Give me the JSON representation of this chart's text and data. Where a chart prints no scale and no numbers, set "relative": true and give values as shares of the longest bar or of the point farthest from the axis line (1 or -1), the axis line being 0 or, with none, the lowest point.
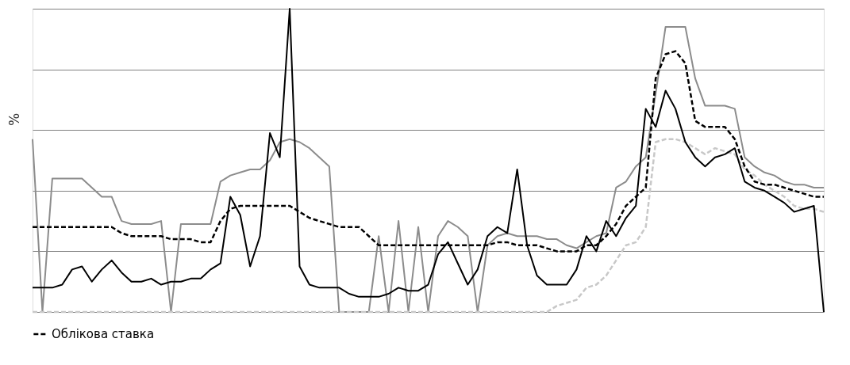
{
  "chart_data": {
    "type": "line",
    "ylabel": "%",
    "relative": true,
    "grid": "y",
    "legend": "bottom",
    "tick_labels": false,
    "categories": [
      null,
      null,
      null,
      null,
      null,
      null,
      null,
      null,
      null,
      null,
      null,
      null,
      null,
      null,
      null,
      null,
      null,
      null,
      null,
      null,
      null,
      null,
      null,
      null,
      null,
      null,
      null,
      null,
      null,
      null,
      null,
      null,
      null,
      null,
      null,
      null,
      null,
      null,
      null,
      null,
      null,
      null,
      null,
      null,
      null,
      null,
      null,
      null,
      null,
      null,
      null,
      null,
      null,
      null,
      null,
      null,
      null,
      null,
      null,
      null,
      null,
      null,
      null,
      null,
      null,
      null,
      null,
      null,
      null,
      null,
      null,
      null,
      null,
      null,
      null,
      null,
      null,
      null,
      null,
      null,
      null
    ],
    "series": [
      {
        "color": "#8c8c8c",
        "line_style": "solid",
        "values": [
          0.57,
          0,
          0.44,
          0.44,
          0.44,
          0.44,
          0.41,
          0.38,
          0.38,
          0.3,
          0.29,
          0.29,
          0.29,
          0.3,
          0,
          0.29,
          0.29,
          0.29,
          0.29,
          0.43,
          0.45,
          0.46,
          0.47,
          0.47,
          0.5,
          0.56,
          0.57,
          0.56,
          0.54,
          0.51,
          0.48,
          0,
          0,
          0,
          0,
          0.25,
          0,
          0.3,
          0,
          0.28,
          0,
          0.25,
          0.3,
          0.28,
          0.25,
          0,
          0.22,
          0.25,
          0.26,
          0.25,
          0.25,
          0.25,
          0.24,
          0.24,
          0.22,
          0.21,
          0.23,
          0.25,
          0.26,
          0.41,
          0.43,
          0.48,
          0.51,
          0.72,
          0.94,
          0.94,
          0.94,
          0.77,
          0.68,
          0.68,
          0.68,
          0.67,
          0.51,
          0.48,
          0.46,
          0.45,
          0.43,
          0.42,
          0.42,
          0.41,
          0.41
        ]
      },
      {
        "color": "#c8c8c8",
        "line_style": "dashed",
        "values": [
          0,
          0,
          0,
          0,
          0,
          0,
          0,
          0,
          0,
          0,
          0,
          0,
          0,
          0,
          0,
          0,
          0,
          0,
          0,
          0,
          0,
          0,
          0,
          0,
          0,
          0,
          0,
          0,
          0,
          0,
          0,
          0,
          0,
          0,
          0,
          0,
          0,
          0,
          0,
          0,
          0,
          0,
          0,
          0,
          0,
          0,
          0,
          0,
          0,
          0,
          0,
          0,
          0,
          0.02,
          0.03,
          0.04,
          0.08,
          0.09,
          0.12,
          0.17,
          0.22,
          0.23,
          0.28,
          0.56,
          0.57,
          0.57,
          0.56,
          0.54,
          0.52,
          0.54,
          0.53,
          0.52,
          0.47,
          0.45,
          0.42,
          0.4,
          0.38,
          0.35,
          0.34,
          0.34,
          0.33
        ]
      },
      {
        "color": "#000000",
        "line_style": "solid",
        "values": [
          0.08,
          0.08,
          0.08,
          0.09,
          0.14,
          0.15,
          0.1,
          0.14,
          0.17,
          0.13,
          0.1,
          0.1,
          0.11,
          0.09,
          0.1,
          0.1,
          0.11,
          0.11,
          0.14,
          0.16,
          0.38,
          0.32,
          0.15,
          0.25,
          0.59,
          0.51,
          1,
          0.15,
          0.09,
          0.08,
          0.08,
          0.08,
          0.06,
          0.05,
          0.05,
          0.05,
          0.06,
          0.08,
          0.07,
          0.07,
          0.09,
          0.19,
          0.23,
          0.16,
          0.09,
          0.14,
          0.25,
          0.28,
          0.26,
          0.47,
          0.22,
          0.12,
          0.09,
          0.09,
          0.09,
          0.14,
          0.25,
          0.2,
          0.3,
          0.25,
          0.31,
          0.35,
          0.67,
          0.61,
          0.73,
          0.67,
          0.56,
          0.51,
          0.48,
          0.51,
          0.52,
          0.54,
          0.43,
          0.41,
          0.4,
          0.38,
          0.36,
          0.33,
          0.34,
          0.35,
          0
        ]
      },
      {
        "name": "Облікова ставка",
        "color": "#000000",
        "line_style": "dashed",
        "values": [
          0.28,
          0.28,
          0.28,
          0.28,
          0.28,
          0.28,
          0.28,
          0.28,
          0.28,
          0.26,
          0.25,
          0.25,
          0.25,
          0.25,
          0.24,
          0.24,
          0.24,
          0.23,
          0.23,
          0.3,
          0.34,
          0.35,
          0.35,
          0.35,
          0.35,
          0.35,
          0.35,
          0.33,
          0.31,
          0.3,
          0.29,
          0.28,
          0.28,
          0.28,
          0.25,
          0.22,
          0.22,
          0.22,
          0.22,
          0.22,
          0.22,
          0.22,
          0.22,
          0.22,
          0.22,
          0.22,
          0.22,
          0.23,
          0.23,
          0.22,
          0.22,
          0.22,
          0.21,
          0.2,
          0.2,
          0.2,
          0.22,
          0.22,
          0.25,
          0.29,
          0.35,
          0.38,
          0.41,
          0.77,
          0.85,
          0.86,
          0.82,
          0.63,
          0.61,
          0.61,
          0.61,
          0.57,
          0.48,
          0.43,
          0.42,
          0.42,
          0.41,
          0.4,
          0.39,
          0.38,
          0.38
        ]
      }
    ]
  }
}
